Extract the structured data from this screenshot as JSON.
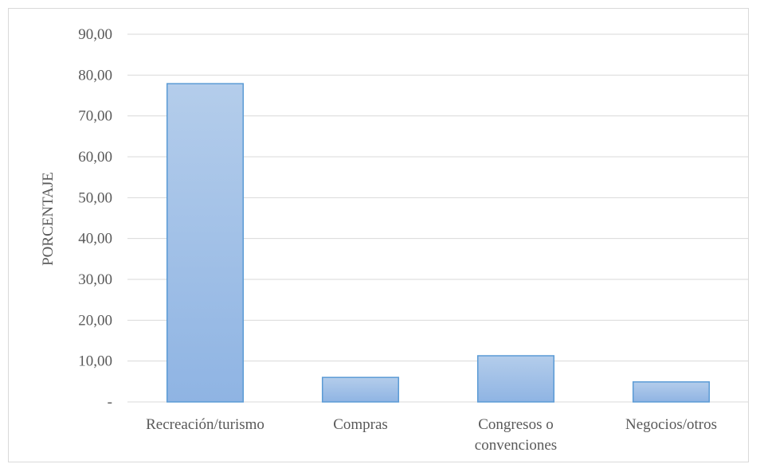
{
  "chart_data": {
    "type": "bar",
    "title": "",
    "xlabel": "",
    "ylabel": "PORCENTAJE",
    "categories": [
      "Recreación/turismo",
      "Compras",
      "Congresos o convenciones",
      "Negocios/otros"
    ],
    "category_lines": [
      [
        "Recreación/turismo"
      ],
      [
        "Compras"
      ],
      [
        "Congresos o",
        "convenciones"
      ],
      [
        "Negocios/otros"
      ]
    ],
    "values": [
      77.9,
      6.0,
      11.3,
      4.9
    ],
    "ylim": [
      0,
      90
    ],
    "yticks": [
      0,
      10,
      20,
      30,
      40,
      50,
      60,
      70,
      80,
      90
    ],
    "ytick_labels": [
      "-",
      "10,00",
      "20,00",
      "30,00",
      "40,00",
      "50,00",
      "60,00",
      "70,00",
      "80,00",
      "90,00"
    ],
    "grid": true,
    "legend": "none"
  },
  "colors": {
    "bar_fill_top": "#b4cdeb",
    "bar_fill_bottom": "#8fb4e3",
    "bar_stroke": "#5b9bd5",
    "text": "#595959",
    "grid": "#d9d9d9"
  }
}
